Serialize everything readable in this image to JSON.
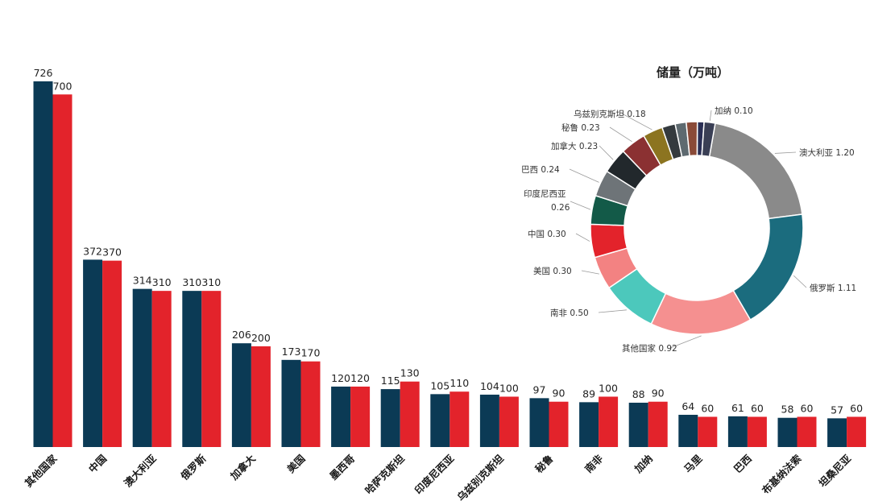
{
  "chart_data": [
    {
      "type": "bar",
      "title": "",
      "categories": [
        "其他国家",
        "中国",
        "澳大利亚",
        "俄罗斯",
        "加拿大",
        "美国",
        "墨西哥",
        "哈萨克斯坦",
        "印度尼西亚",
        "乌兹别克斯坦",
        "秘鲁",
        "南非",
        "加纳",
        "马里",
        "巴西",
        "布基纳法索",
        "坦桑尼亚"
      ],
      "series": [
        {
          "color": "#0b3a55",
          "values": [
            726,
            372,
            314,
            310,
            206,
            173,
            120,
            115,
            105,
            104,
            97,
            89,
            88,
            64,
            61,
            58,
            57
          ]
        },
        {
          "color": "#e3232b",
          "values": [
            700,
            370,
            310,
            310,
            200,
            170,
            120,
            130,
            110,
            100,
            90,
            100,
            90,
            60,
            60,
            60,
            60
          ]
        }
      ],
      "value_labels": [
        [
          "726",
          "372",
          "314",
          "310",
          "206",
          "173",
          "120",
          "115",
          "105",
          "104",
          "97",
          "89",
          "88",
          "64",
          "61",
          "58",
          "57"
        ],
        [
          "700",
          "370",
          "310",
          "310",
          "200",
          "170",
          "120",
          "130",
          "110",
          "100",
          "90",
          "100",
          "90",
          "60",
          "60",
          "60",
          "60"
        ]
      ],
      "ylim": [
        0,
        760
      ],
      "grid": false,
      "xlabel": "",
      "ylabel": ""
    },
    {
      "type": "pie",
      "style": "donut",
      "title": "储量（万吨）",
      "slices": [
        {
          "label": "澳大利亚",
          "value_label": "1.20",
          "value": 1.2,
          "color": "#8a8a8a"
        },
        {
          "label": "俄罗斯",
          "value_label": "1.11",
          "value": 1.11,
          "color": "#1b6c7e"
        },
        {
          "label": "其他国家",
          "value_label": "0.92",
          "value": 0.92,
          "color": "#f59090"
        },
        {
          "label": "南非",
          "value_label": "0.50",
          "value": 0.5,
          "color": "#4cc8bc"
        },
        {
          "label": "美国",
          "value_label": "0.30",
          "value": 0.3,
          "color": "#f38282"
        },
        {
          "label": "中国",
          "value_label": "0.30",
          "value": 0.3,
          "color": "#e3232b"
        },
        {
          "label": "印度尼西亚",
          "value_label": "0.26",
          "value": 0.26,
          "color": "#135a48"
        },
        {
          "label": "巴西",
          "value_label": "0.24",
          "value": 0.24,
          "color": "#6e7478"
        },
        {
          "label": "加拿大",
          "value_label": "0.23",
          "value": 0.23,
          "color": "#22282c"
        },
        {
          "label": "秘鲁",
          "value_label": "0.23",
          "value": 0.23,
          "color": "#8b3132"
        },
        {
          "label": "乌兹别克斯坦",
          "value_label": "0.18",
          "value": 0.18,
          "color": "#8c7420"
        },
        {
          "label": "",
          "value_label": "",
          "value": 0.12,
          "color": "#343a3e"
        },
        {
          "label": "",
          "value_label": "",
          "value": 0.1,
          "color": "#5e6a70"
        },
        {
          "label": "",
          "value_label": "",
          "value": 0.1,
          "color": "#8a4a38"
        },
        {
          "label": "",
          "value_label": "",
          "value": 0.06,
          "color": "#2a2f55"
        },
        {
          "label": "加纳",
          "value_label": "0.10",
          "value": 0.1,
          "color": "#3a3f55"
        }
      ]
    }
  ]
}
